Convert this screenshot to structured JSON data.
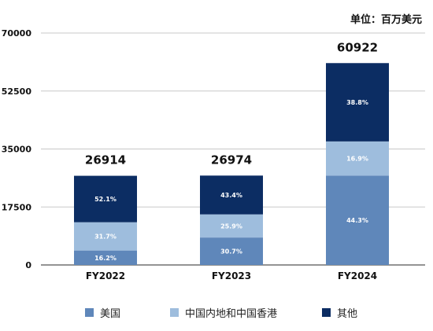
{
  "unit_label": "单位：百万美元",
  "chart_data": {
    "type": "bar",
    "stacked": true,
    "categories": [
      "FY2022",
      "FY2023",
      "FY2024"
    ],
    "totals": [
      26914,
      26974,
      60922
    ],
    "ylim": [
      0,
      70000
    ],
    "yticks": [
      0,
      17500,
      35000,
      52500,
      70000
    ],
    "grid": true,
    "legend_position": "bottom",
    "series": [
      {
        "name": "美国",
        "color": "#5f87ba",
        "share_labels": [
          "16.2%",
          "30.7%",
          "44.3%"
        ],
        "values": [
          4360,
          8281,
          26988
        ]
      },
      {
        "name": "中国内地和中国香港",
        "color": "#9ebddd",
        "share_labels": [
          "31.7%",
          "25.9%",
          "16.9%"
        ],
        "values": [
          8532,
          6986,
          10296
        ]
      },
      {
        "name": "其他",
        "color": "#0c2d63",
        "share_labels": [
          "52.1%",
          "43.4%",
          "38.8%"
        ],
        "values": [
          14022,
          11707,
          23638
        ]
      }
    ]
  }
}
